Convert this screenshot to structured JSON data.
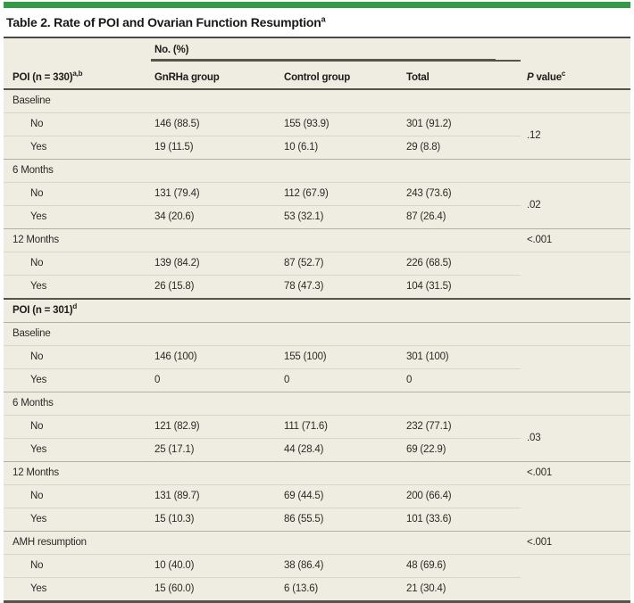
{
  "colors": {
    "accent_green": "#319b48",
    "table_background": "#efece2",
    "dark_rule": "#55534b",
    "section_line": "#b2afa4",
    "row_line": "#d8d5c9"
  },
  "title": {
    "text": "Table 2. Rate of POI and Ovarian Function Resumption",
    "sup": "a"
  },
  "header": {
    "stub": {
      "text": "POI (n = 330)",
      "sup": "a,b"
    },
    "group_label": "No. (%)",
    "columns": [
      "GnRHa group",
      "Control group",
      "Total"
    ],
    "p": {
      "italic": "P",
      "rest": " value",
      "sup": "c"
    }
  },
  "sections": [
    {
      "label": "Baseline",
      "p": "",
      "pair_p": ".12",
      "rows": [
        {
          "label": "No",
          "v1": "146 (88.5)",
          "v2": "155 (93.9)",
          "v3": "301 (91.2)"
        },
        {
          "label": "Yes",
          "v1": "19 (11.5)",
          "v2": "10 (6.1)",
          "v3": "29 (8.8)"
        }
      ]
    },
    {
      "label": "6 Months",
      "p": "",
      "pair_p": ".02",
      "rows": [
        {
          "label": "No",
          "v1": "131 (79.4)",
          "v2": "112 (67.9)",
          "v3": "243 (73.6)"
        },
        {
          "label": "Yes",
          "v1": "34 (20.6)",
          "v2": "53 (32.1)",
          "v3": "87 (26.4)"
        }
      ]
    },
    {
      "label": "12 Months",
      "p": "<.001",
      "pair_p": "",
      "rows": [
        {
          "label": "No",
          "v1": "139 (84.2)",
          "v2": "87 (52.7)",
          "v3": "226 (68.5)"
        },
        {
          "label": "Yes",
          "v1": "26 (15.8)",
          "v2": "78 (47.3)",
          "v3": "104 (31.5)"
        }
      ]
    },
    {
      "label": "POI (n = 301)",
      "sup": "d",
      "p": "",
      "pair_p": "",
      "rows": []
    },
    {
      "label": "Baseline",
      "p": "",
      "pair_p": "",
      "rows": [
        {
          "label": "No",
          "v1": "146 (100)",
          "v2": "155 (100)",
          "v3": "301 (100)"
        },
        {
          "label": "Yes",
          "v1": "0",
          "v2": "0",
          "v3": "0"
        }
      ]
    },
    {
      "label": "6 Months",
      "p": "",
      "pair_p": ".03",
      "rows": [
        {
          "label": "No",
          "v1": "121 (82.9)",
          "v2": "111 (71.6)",
          "v3": "232 (77.1)"
        },
        {
          "label": "Yes",
          "v1": "25 (17.1)",
          "v2": "44 (28.4)",
          "v3": "69 (22.9)"
        }
      ]
    },
    {
      "label": "12 Months",
      "p": "<.001",
      "pair_p": "",
      "rows": [
        {
          "label": "No",
          "v1": "131 (89.7)",
          "v2": "69 (44.5)",
          "v3": "200 (66.4)"
        },
        {
          "label": "Yes",
          "v1": "15 (10.3)",
          "v2": "86 (55.5)",
          "v3": "101 (33.6)"
        }
      ]
    },
    {
      "label": "AMH resumption",
      "p": "<.001",
      "pair_p": "",
      "rows": [
        {
          "label": "No",
          "v1": "10 (40.0)",
          "v2": "38 (86.4)",
          "v3": "48 (69.6)"
        },
        {
          "label": "Yes",
          "v1": "15 (60.0)",
          "v2": "6 (13.6)",
          "v3": "21 (30.4)"
        }
      ]
    }
  ]
}
